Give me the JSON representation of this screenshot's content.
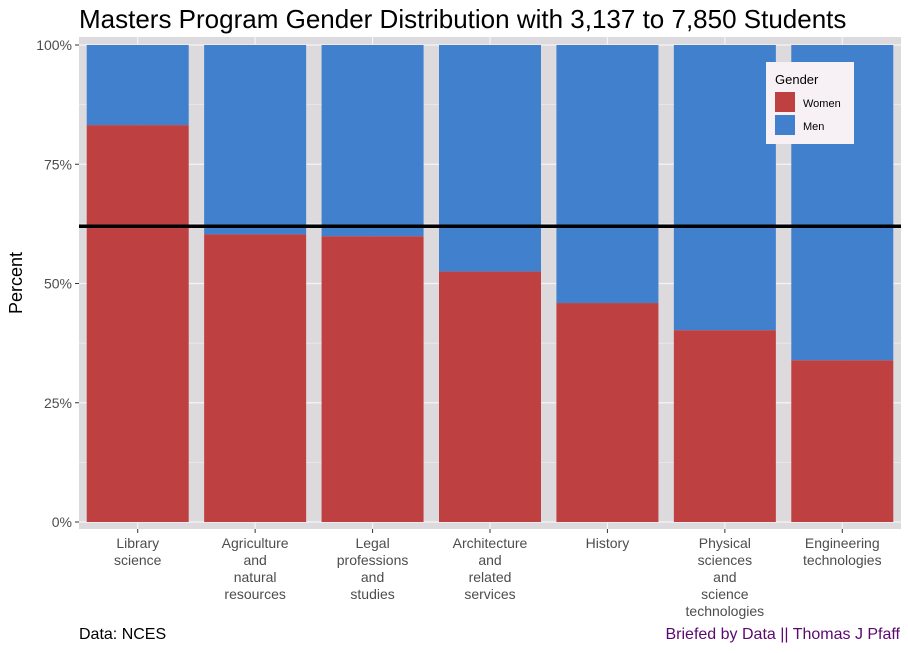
{
  "title": "Masters Program Gender Distribution with 3,137 to 7,850 Students",
  "footer": {
    "source": "Data: NCES",
    "credit": "Briefed by Data || Thomas J Pfaff"
  },
  "colors": {
    "women": "#bf4040",
    "men": "#4180cc",
    "panel": "#dddadd",
    "grid": "#f5f3f6",
    "reference_line": "#000000",
    "legend_bg": "#f7f1f6"
  },
  "chart_data": {
    "type": "bar",
    "stacked": true,
    "title": "Masters Program Gender Distribution with 3,137 to 7,850 Students",
    "xlabel": "",
    "ylabel": "Percent",
    "ylim": [
      0,
      100
    ],
    "yticks": [
      "0%",
      "25%",
      "50%",
      "75%",
      "100%"
    ],
    "categories": [
      "Library science",
      "Agriculture and natural resources",
      "Legal professions and studies",
      "Architecture and related services",
      "History",
      "Physical sciences and science technologies",
      "Engineering technologies"
    ],
    "category_label_lines": [
      [
        "Library",
        "science"
      ],
      [
        "Agriculture",
        "and",
        "natural",
        "resources"
      ],
      [
        "Legal",
        "professions",
        "and",
        "studies"
      ],
      [
        "Architecture",
        "and",
        "related",
        "services"
      ],
      [
        "History"
      ],
      [
        "Physical",
        "sciences",
        "and",
        "science",
        "technologies"
      ],
      [
        "Engineering",
        "technologies"
      ]
    ],
    "series": [
      {
        "name": "Women",
        "values": [
          83.2,
          60.3,
          59.9,
          52.5,
          45.9,
          40.2,
          33.9
        ]
      },
      {
        "name": "Men",
        "values": [
          16.8,
          39.7,
          40.1,
          47.5,
          54.1,
          59.8,
          66.1
        ]
      }
    ],
    "reference_line": 62,
    "legend": {
      "title": "Gender",
      "position": "top-right",
      "entries": [
        "Women",
        "Men"
      ]
    },
    "grid": true
  }
}
